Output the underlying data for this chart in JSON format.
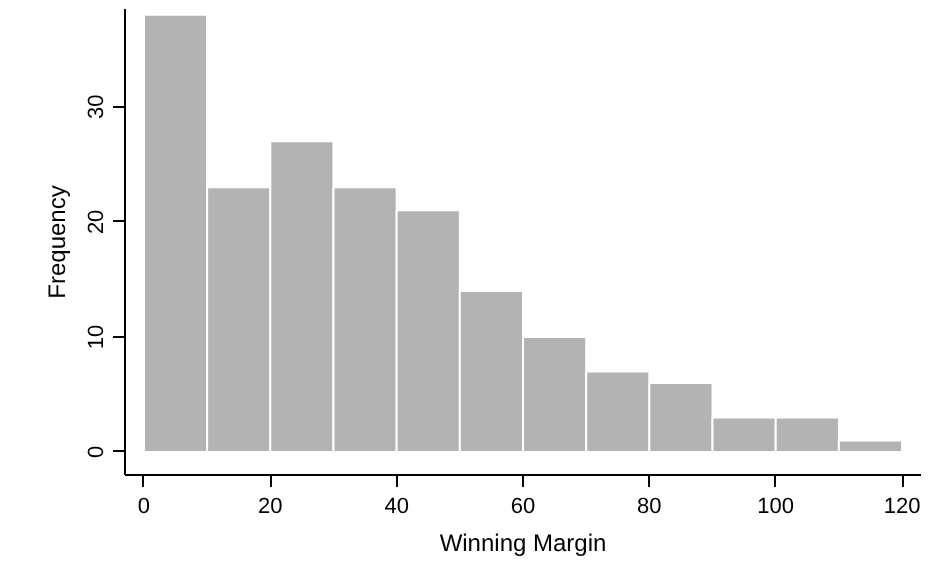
{
  "chart_data": {
    "type": "histogram",
    "xlabel": "Winning Margin",
    "ylabel": "Frequency",
    "bins": [
      0,
      10,
      20,
      30,
      40,
      50,
      60,
      70,
      80,
      90,
      100,
      110,
      120
    ],
    "values": [
      38,
      23,
      27,
      23,
      21,
      14,
      10,
      7,
      6,
      3,
      3,
      1
    ],
    "color": "#b3b3b3",
    "xlim": [
      -3,
      123
    ],
    "ylim": [
      -2,
      38.5
    ],
    "xticks": [
      0,
      20,
      40,
      60,
      80,
      100,
      120
    ],
    "yticks": [
      0,
      10,
      20,
      30
    ],
    "grid": false
  }
}
